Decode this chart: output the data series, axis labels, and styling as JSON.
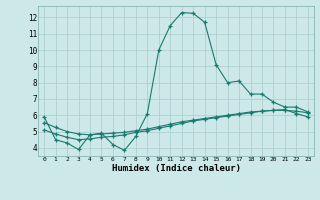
{
  "xlabel": "Humidex (Indice chaleur)",
  "background_color": "#cce8e8",
  "grid_color": "#aacccc",
  "line_color": "#1a7a6e",
  "xlim": [
    -0.5,
    23.5
  ],
  "ylim": [
    3.5,
    12.7
  ],
  "xticks": [
    0,
    1,
    2,
    3,
    4,
    5,
    6,
    7,
    8,
    9,
    10,
    11,
    12,
    13,
    14,
    15,
    16,
    17,
    18,
    19,
    20,
    21,
    22,
    23
  ],
  "yticks": [
    4,
    5,
    6,
    7,
    8,
    9,
    10,
    11,
    12
  ],
  "series1_x": [
    0,
    1,
    2,
    3,
    4,
    5,
    6,
    7,
    8,
    9,
    10,
    11,
    12,
    13,
    14,
    15,
    16,
    17,
    18,
    19,
    20,
    21,
    22,
    23
  ],
  "series1_y": [
    5.9,
    4.5,
    4.3,
    3.9,
    4.8,
    4.9,
    4.2,
    3.85,
    4.7,
    6.1,
    10.0,
    11.5,
    12.3,
    12.25,
    11.7,
    9.1,
    8.0,
    8.1,
    7.3,
    7.3,
    6.8,
    6.5,
    6.5,
    6.2
  ],
  "series2_x": [
    0,
    1,
    2,
    3,
    4,
    5,
    6,
    7,
    8,
    9,
    10,
    11,
    12,
    13,
    14,
    15,
    16,
    17,
    18,
    19,
    20,
    21,
    22,
    23
  ],
  "series2_y": [
    5.1,
    4.85,
    4.65,
    4.5,
    4.55,
    4.65,
    4.7,
    4.8,
    4.95,
    5.05,
    5.2,
    5.35,
    5.5,
    5.65,
    5.75,
    5.85,
    5.95,
    6.05,
    6.15,
    6.25,
    6.3,
    6.35,
    6.1,
    5.9
  ],
  "series3_x": [
    0,
    1,
    2,
    3,
    4,
    5,
    6,
    7,
    8,
    9,
    10,
    11,
    12,
    13,
    14,
    15,
    16,
    17,
    18,
    19,
    20,
    21,
    22,
    23
  ],
  "series3_y": [
    5.55,
    5.25,
    5.0,
    4.85,
    4.8,
    4.85,
    4.9,
    4.95,
    5.05,
    5.15,
    5.3,
    5.45,
    5.6,
    5.7,
    5.8,
    5.9,
    6.0,
    6.1,
    6.2,
    6.25,
    6.3,
    6.3,
    6.25,
    6.15
  ]
}
